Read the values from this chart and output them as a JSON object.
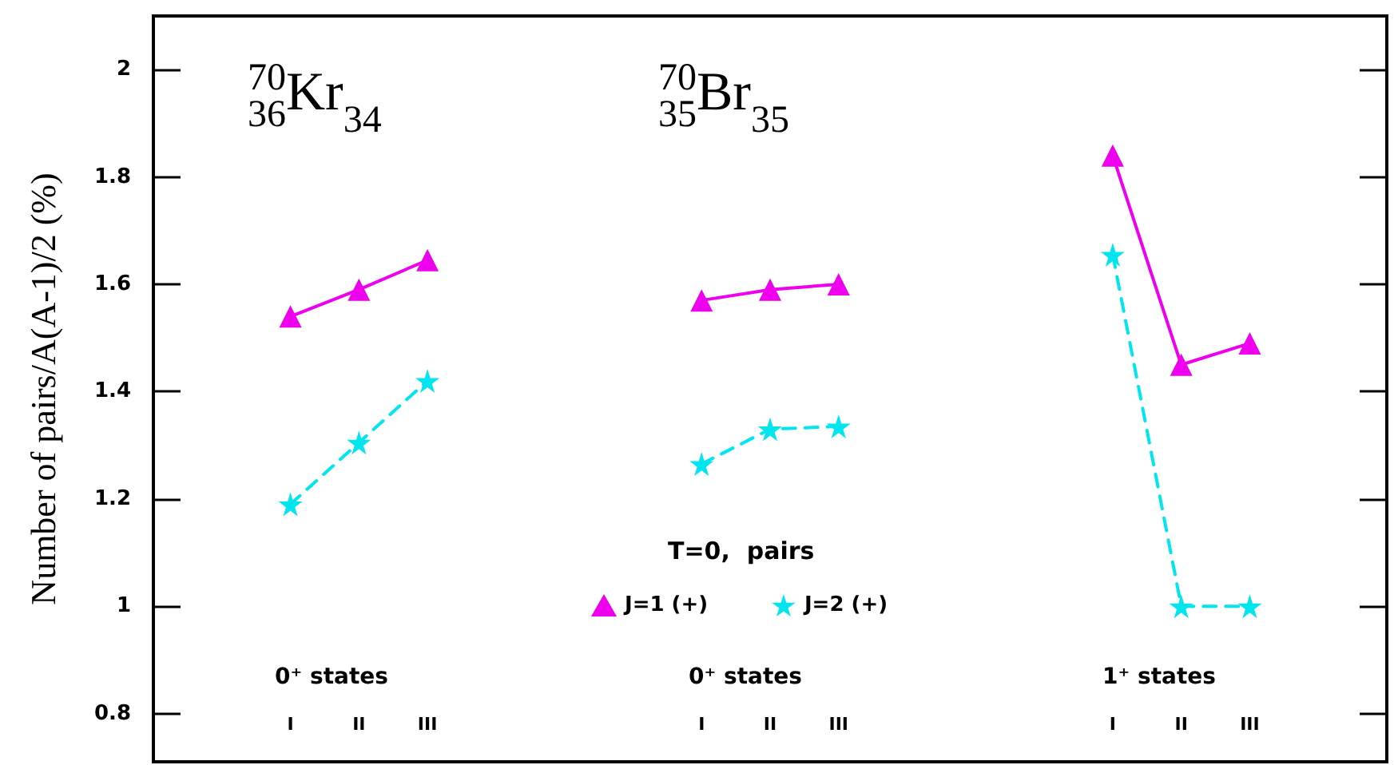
{
  "chart_data": {
    "type": "line",
    "ylabel": "Number of pairs/A(A-1)/2 (%)",
    "legend_title": "T=0,  pairs",
    "legend": "bottom",
    "grid": false,
    "categories": [
      null,
      null,
      "I",
      "II",
      "III",
      null,
      null,
      null,
      "I",
      "II",
      "III",
      null,
      null,
      null,
      "I",
      "II",
      "III",
      null,
      null
    ],
    "ylim": [
      0.71,
      2.1
    ],
    "yticks": [
      {
        "value": 0.8,
        "label": "0.8"
      },
      1,
      {
        "value": 1.2,
        "label": "1.2"
      },
      {
        "value": 1.4,
        "label": "1.4"
      },
      {
        "value": 1.6,
        "label": "1.6"
      },
      {
        "value": 1.8,
        "label": "1.8"
      },
      2
    ],
    "series": [
      {
        "name": "J=1 (+)",
        "color": "#ee00ee",
        "marker": "triangle",
        "line_style": "solid",
        "values": [
          null,
          null,
          1.54,
          1.59,
          1.645,
          null,
          null,
          null,
          1.57,
          1.59,
          1.6,
          null,
          null,
          null,
          1.84,
          1.45,
          1.49,
          null,
          null
        ]
      },
      {
        "name": "J=2 (+)",
        "color": "#00e5ee",
        "marker": "star",
        "line_style": "dashed",
        "values": [
          null,
          null,
          1.19,
          1.305,
          1.42,
          null,
          null,
          null,
          1.265,
          1.33,
          1.335,
          null,
          null,
          null,
          1.655,
          1.0,
          1.0,
          null,
          null
        ]
      }
    ],
    "annotations": [
      "$^{70}$$_{36}$Kr$_{34}$",
      "$^{70}$$_{35}$Br$_{35}$",
      "0⁺ states",
      "0⁺ states",
      "1⁺ states"
    ]
  }
}
